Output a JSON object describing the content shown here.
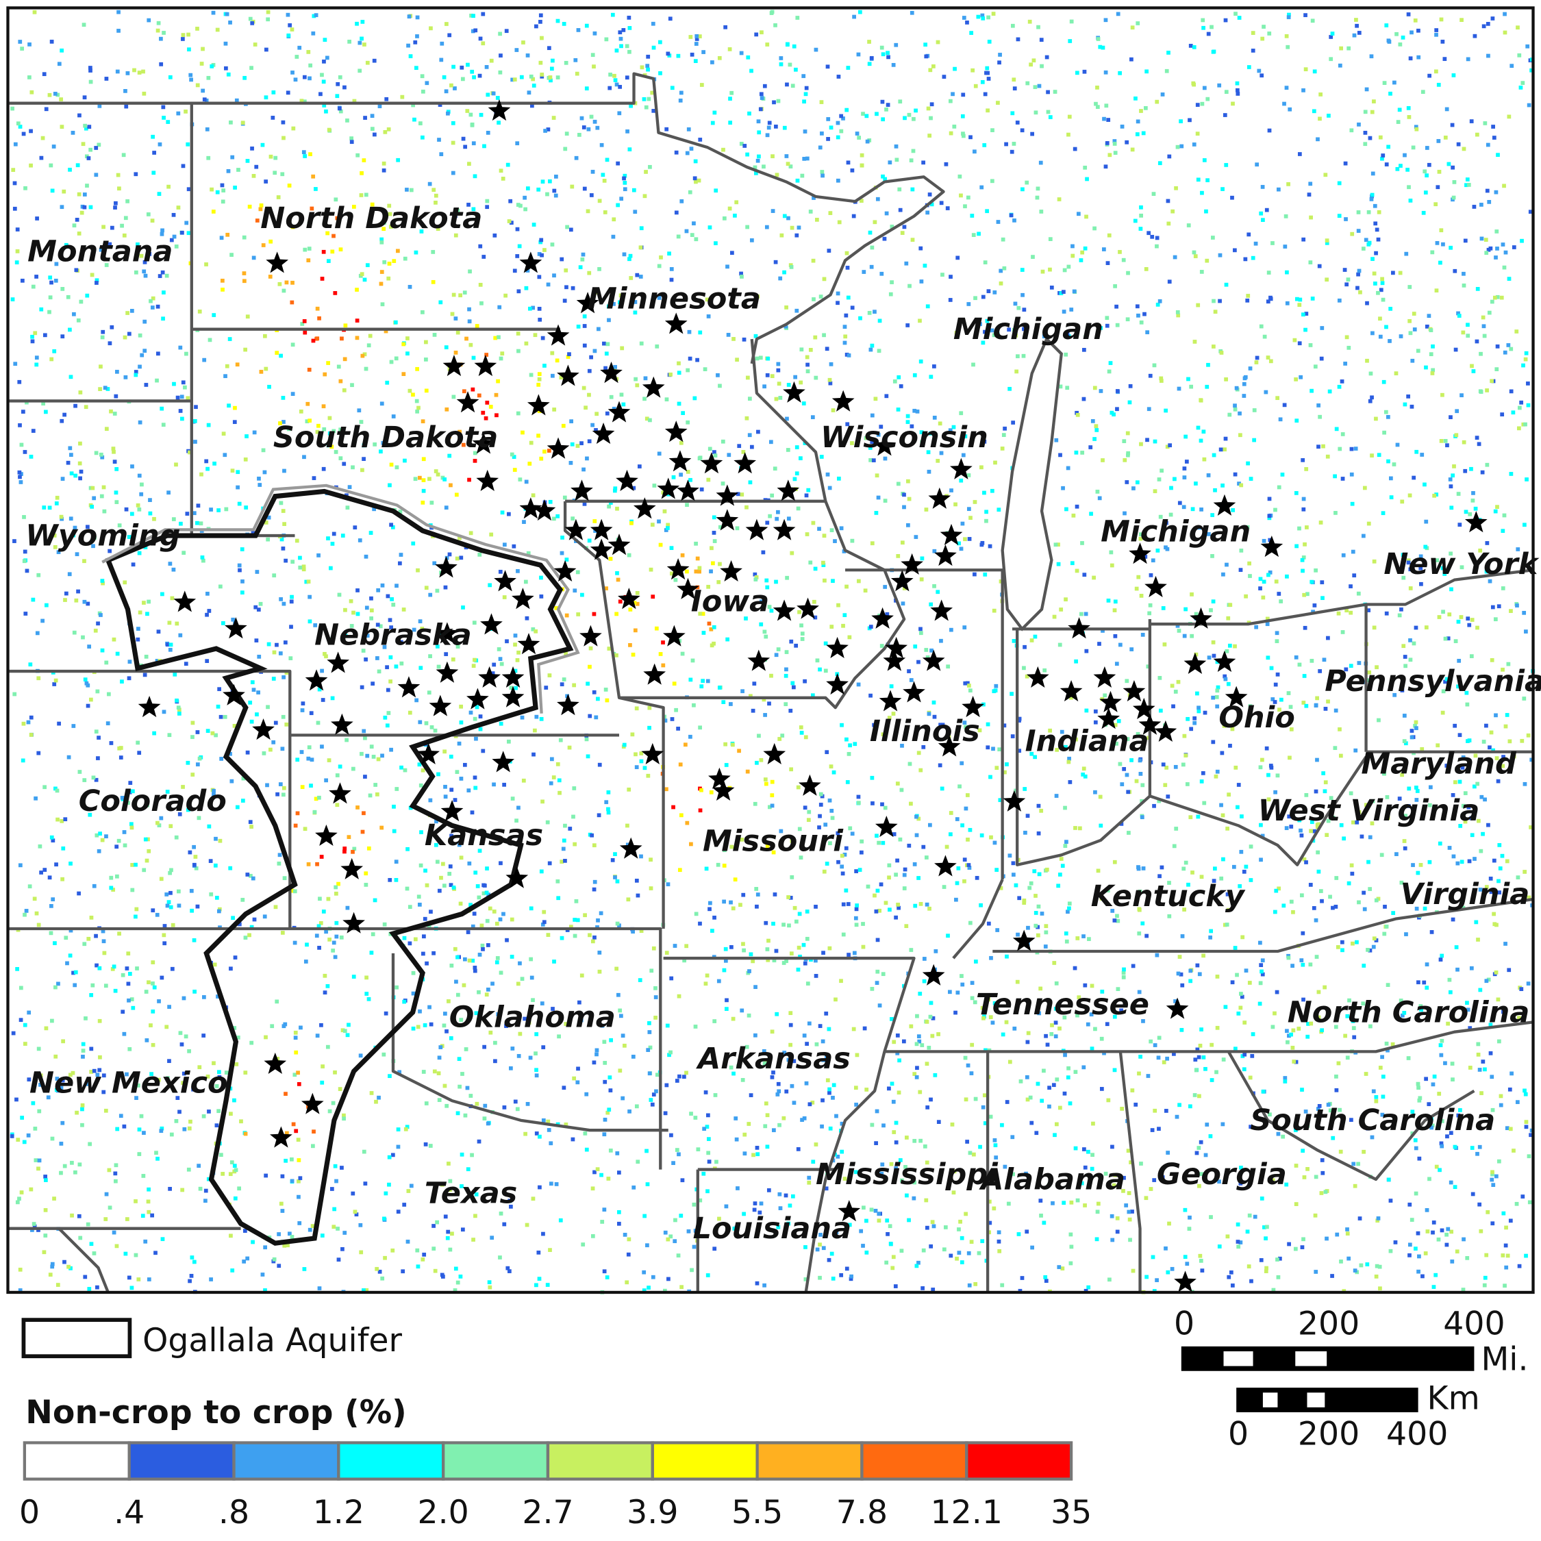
{
  "map": {
    "states": [
      {
        "label": "North Dakota"
      },
      {
        "label": "Montana"
      },
      {
        "label": "Minnesota"
      },
      {
        "label": "Michigan"
      },
      {
        "label": "South Dakota"
      },
      {
        "label": "Wisconsin"
      },
      {
        "label": "Wyoming"
      },
      {
        "label": "Michigan"
      },
      {
        "label": "New York"
      },
      {
        "label": "Iowa"
      },
      {
        "label": "Nebraska"
      },
      {
        "label": "Pennsylvania"
      },
      {
        "label": "Illinois"
      },
      {
        "label": "Indiana"
      },
      {
        "label": "Ohio"
      },
      {
        "label": "Maryland"
      },
      {
        "label": "Colorado"
      },
      {
        "label": "West Virginia"
      },
      {
        "label": "Kansas"
      },
      {
        "label": "Missouri"
      },
      {
        "label": "Kentucky"
      },
      {
        "label": "Virginia"
      },
      {
        "label": "Tennessee"
      },
      {
        "label": "North Carolina"
      },
      {
        "label": "Oklahoma"
      },
      {
        "label": "Arkansas"
      },
      {
        "label": "New Mexico"
      },
      {
        "label": "South Carolina"
      },
      {
        "label": "Mississippi"
      },
      {
        "label": "Alabama"
      },
      {
        "label": "Georgia"
      },
      {
        "label": "Texas"
      },
      {
        "label": "Louisiana"
      }
    ]
  },
  "legend": {
    "aquifer": "Ogallala Aquifer",
    "colorbar_title": "Non-crop to crop (%)",
    "classes": [
      {
        "color": "#ffffff"
      },
      {
        "color": "#2b5de0"
      },
      {
        "color": "#3ea0f0"
      },
      {
        "color": "#00ffff"
      },
      {
        "color": "#80f0b0"
      },
      {
        "color": "#c8f060"
      },
      {
        "color": "#ffff00"
      },
      {
        "color": "#ffb020"
      },
      {
        "color": "#ff6a10"
      },
      {
        "color": "#ff0000"
      }
    ],
    "breaks": [
      "0",
      ".4",
      ".8",
      "1.2",
      "2.0",
      "2.7",
      "3.9",
      "5.5",
      "7.8",
      "12.1",
      "35"
    ]
  },
  "scale_bar": {
    "miles": [
      "0",
      "200",
      "400"
    ],
    "miles_unit": "Mi.",
    "km": [
      "0",
      "200",
      "400"
    ],
    "km_unit": "Km"
  }
}
